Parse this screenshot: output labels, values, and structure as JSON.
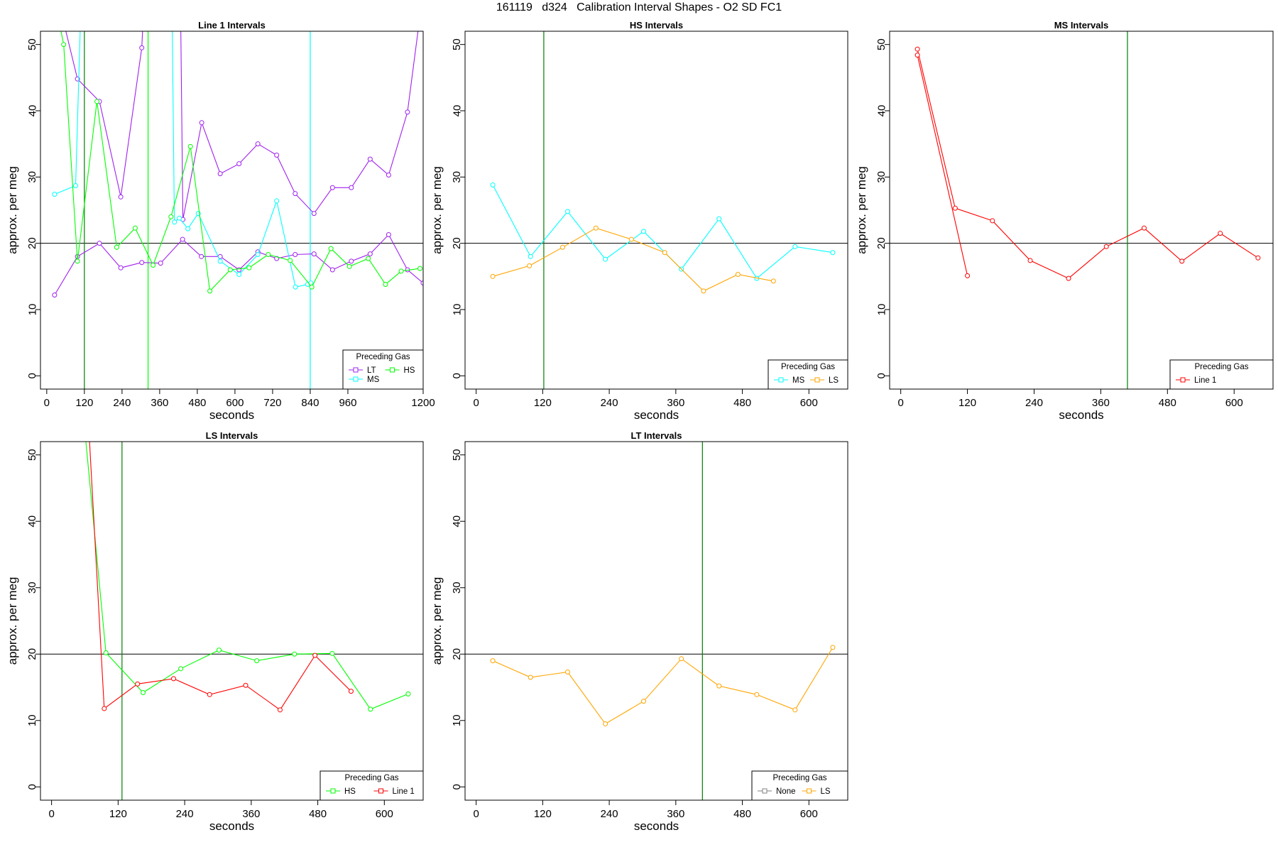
{
  "page": {
    "title": "161119   d324   Calibration Interval Shapes - O2 SD FC1"
  },
  "colors": {
    "LT": "#a020f0",
    "HS": "#00ff00",
    "MS": "#00ffff",
    "LS": "#ffa500",
    "Line 1": "#ff0000",
    "None": "#808080",
    "vline": "#007f00",
    "hline": "#000000"
  },
  "chart_data": [
    {
      "type": "line",
      "title": "Line 1 Intervals",
      "xlabel": "seconds",
      "ylabel": "approx. per meg",
      "xlim": [
        -20,
        1200
      ],
      "ylim": [
        -2,
        52
      ],
      "xticks": [
        0,
        120,
        240,
        360,
        480,
        600,
        720,
        840,
        960,
        1200
      ],
      "yticks": [
        0,
        10,
        20,
        30,
        40,
        50
      ],
      "hline": 20,
      "legend": {
        "title": "Preceding Gas",
        "position": "bottom-right",
        "entries": [
          "LT",
          "HS",
          "MS"
        ]
      },
      "vlines": [
        {
          "x": 120,
          "color": "vline"
        },
        {
          "x": 323,
          "color": "HS"
        },
        {
          "x": 840,
          "color": "MS"
        }
      ],
      "series": [
        {
          "name": "LT",
          "segments": [
            {
              "x": [
                25,
                98,
                168,
                236,
                303,
                333
              ],
              "y": [
                59,
                44.8,
                41.4,
                27,
                49.5,
                80
              ]
            },
            {
              "x": [
                421,
                434,
                494,
                553,
                613,
                673,
                733,
                792,
                852,
                911,
                971,
                1031,
                1090,
                1150,
                1200
              ],
              "y": [
                80,
                23.6,
                38.2,
                30.5,
                32,
                35,
                33.3,
                27.5,
                24.5,
                28.4,
                28.4,
                32.7,
                30.3,
                39.8,
                58
              ]
            },
            {
              "x": [
                25,
                98,
                168,
                236,
                303,
                363,
                433,
                493,
                553,
                613,
                673,
                733,
                792,
                852,
                911,
                971,
                1031,
                1090,
                1150,
                1200
              ],
              "y": [
                12.2,
                18,
                20,
                16.3,
                17.1,
                17,
                20.6,
                18,
                18,
                16,
                18.7,
                17.7,
                18.3,
                18.4,
                16,
                17.3,
                18.4,
                21.3,
                16,
                14
              ]
            }
          ]
        },
        {
          "name": "MS",
          "segments": [
            {
              "x": [
                25,
                92,
                124
              ],
              "y": [
                27.4,
                28.7,
                80
              ]
            },
            {
              "x": [
                394,
                407,
                423,
                450,
                483,
                553,
                613,
                673,
                733,
                793,
                832,
                842
              ],
              "y": [
                80,
                23.2,
                23.8,
                22.2,
                24.5,
                17.3,
                15.3,
                18.3,
                26.4,
                13.4,
                13.8,
                14
              ]
            }
          ]
        },
        {
          "name": "HS",
          "segments": [
            {
              "x": [
                20,
                54,
                98,
                160,
                223,
                282,
                339,
                396,
                458,
                520,
                585,
                645,
                706,
                776,
                845,
                906,
                965,
                1025,
                1080,
                1130,
                1190
              ],
              "y": [
                58,
                50,
                17.3,
                41.4,
                19.4,
                22.3,
                16.7,
                24,
                34.6,
                12.8,
                16,
                16.3,
                18.3,
                17.4,
                13.4,
                19.2,
                16.5,
                17.7,
                13.8,
                15.8,
                16.2
              ]
            }
          ]
        }
      ]
    },
    {
      "type": "line",
      "title": "HS Intervals",
      "xlabel": "seconds",
      "ylabel": "approx. per meg",
      "xlim": [
        -20,
        670
      ],
      "ylim": [
        -2,
        52
      ],
      "xticks": [
        0,
        120,
        240,
        360,
        480,
        600
      ],
      "yticks": [
        0,
        10,
        20,
        30,
        40,
        50
      ],
      "hline": 20,
      "legend": {
        "title": "Preceding Gas",
        "position": "bottom-right",
        "entries": [
          "MS",
          "LS"
        ]
      },
      "vlines": [
        {
          "x": 122,
          "color": "vline"
        }
      ],
      "series": [
        {
          "name": "MS",
          "segments": [
            {
              "x": [
                30,
                98,
                165,
                233,
                302,
                370,
                438,
                506,
                575,
                643
              ],
              "y": [
                28.8,
                18,
                24.8,
                17.6,
                21.8,
                16.1,
                23.7,
                14.7,
                19.5,
                18.6
              ]
            }
          ]
        },
        {
          "name": "LS",
          "segments": [
            {
              "x": [
                30,
                96,
                156,
                216,
                280,
                340,
                410,
                472,
                536
              ],
              "y": [
                15,
                16.6,
                19.4,
                22.3,
                20.6,
                18.6,
                12.8,
                15.3,
                14.3
              ]
            }
          ]
        }
      ]
    },
    {
      "type": "line",
      "title": "MS Intervals",
      "xlabel": "seconds",
      "ylabel": "approx. per meg",
      "xlim": [
        -20,
        670
      ],
      "ylim": [
        -2,
        52
      ],
      "xticks": [
        0,
        120,
        240,
        360,
        480,
        600
      ],
      "yticks": [
        0,
        10,
        20,
        30,
        40,
        50
      ],
      "hline": 20,
      "legend": {
        "title": "Preceding Gas",
        "position": "bottom-right",
        "entries": [
          "Line 1"
        ]
      },
      "vlines": [
        {
          "x": 408,
          "color": "vline"
        }
      ],
      "series": [
        {
          "name": "Line 1",
          "segments": [
            {
              "x": [
                30,
                98,
                165,
                233,
                302,
                370,
                438,
                506,
                575,
                643
              ],
              "y": [
                49.3,
                25.3,
                23.4,
                17.4,
                14.7,
                19.5,
                22.3,
                17.3,
                21.5,
                17.8
              ]
            },
            {
              "x": [
                30,
                120
              ],
              "y": [
                48.4,
                15.1
              ]
            }
          ]
        }
      ]
    },
    {
      "type": "line",
      "title": "LS Intervals",
      "xlabel": "seconds",
      "ylabel": "approx. per meg",
      "xlim": [
        -20,
        670
      ],
      "ylim": [
        -2,
        52
      ],
      "xticks": [
        0,
        120,
        240,
        360,
        480,
        600
      ],
      "yticks": [
        0,
        10,
        20,
        30,
        40,
        50
      ],
      "hline": 20,
      "legend": {
        "title": "Preceding Gas",
        "position": "bottom-right",
        "entries": [
          "HS",
          "Line 1"
        ]
      },
      "vlines": [
        {
          "x": 127,
          "color": "vline"
        }
      ],
      "series": [
        {
          "name": "HS",
          "segments": [
            {
              "x": [
                30,
                98,
                165,
                233,
                302,
                370,
                438,
                506,
                575,
                643
              ],
              "y": [
                80,
                20.2,
                14.2,
                17.8,
                20.6,
                19,
                20,
                20.1,
                11.7,
                14
              ]
            }
          ]
        },
        {
          "name": "Line 1",
          "segments": [
            {
              "x": [
                50,
                95,
                155,
                220,
                285,
                350,
                412,
                475,
                540
              ],
              "y": [
                80,
                11.8,
                15.5,
                16.3,
                13.9,
                15.3,
                11.6,
                19.8,
                14.4
              ]
            }
          ]
        }
      ]
    },
    {
      "type": "line",
      "title": "LT Intervals",
      "xlabel": "seconds",
      "ylabel": "approx. per meg",
      "xlim": [
        -20,
        670
      ],
      "ylim": [
        -2,
        52
      ],
      "xticks": [
        0,
        120,
        240,
        360,
        480,
        600
      ],
      "yticks": [
        0,
        10,
        20,
        30,
        40,
        50
      ],
      "hline": 20,
      "legend": {
        "title": "Preceding Gas",
        "position": "bottom-right",
        "entries": [
          "None",
          "LS"
        ]
      },
      "vlines": [
        {
          "x": 408,
          "color": "vline"
        }
      ],
      "series": [
        {
          "name": "LS",
          "segments": [
            {
              "x": [
                30,
                98,
                165,
                233,
                302,
                370,
                438,
                506,
                575,
                643
              ],
              "y": [
                19,
                16.5,
                17.3,
                9.5,
                12.9,
                19.3,
                15.2,
                13.9,
                11.6,
                21
              ]
            }
          ]
        }
      ]
    }
  ]
}
